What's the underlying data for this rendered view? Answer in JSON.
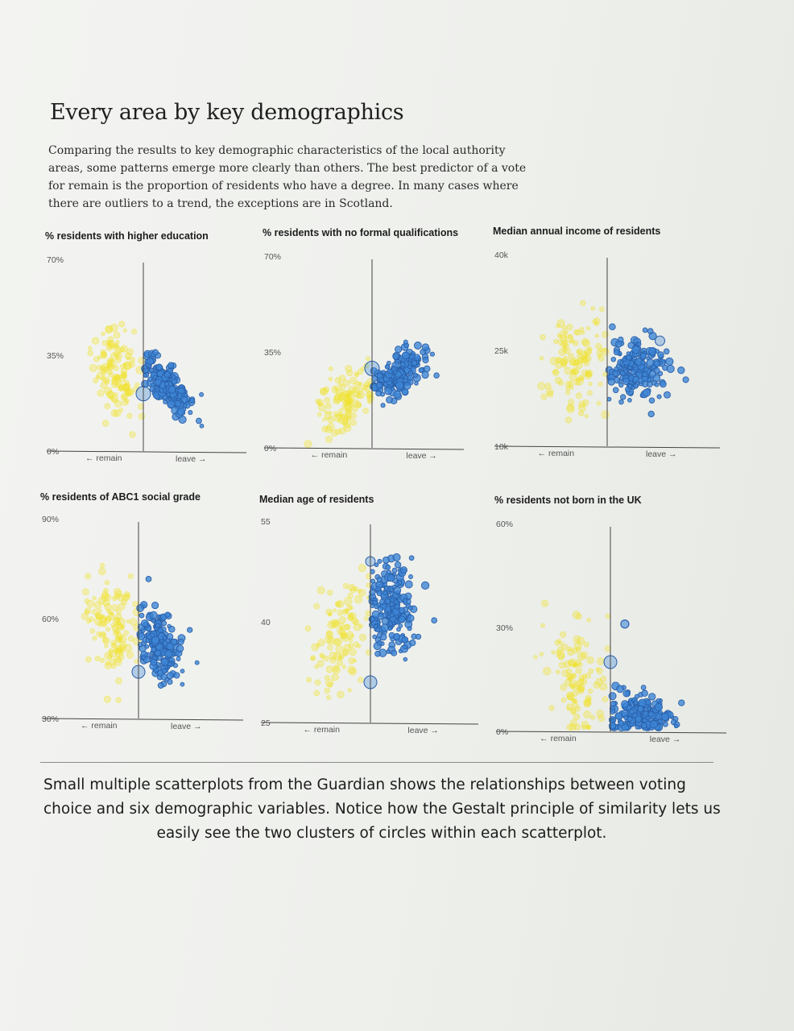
{
  "title": "Every area by key demographics",
  "intro": [
    "Comparing the results to key demographic characteristics of the local authority",
    "areas, some patterns emerge more clearly than others. The best predictor of a vote",
    "for remain is the proportion of residents who have a degree. In many cases where",
    "there are outliers to a trend, the exceptions are in Scotland."
  ],
  "colors": {
    "remain": "#f2e32a",
    "leave": "#3d86d6",
    "leave_stroke": "#2a5fa8",
    "axis": "#555555"
  },
  "labels": {
    "remain": "← remain",
    "leave": "leave →"
  },
  "chart_data": [
    {
      "type": "scatter",
      "title": "% residents with higher education",
      "ylim": [
        0,
        70
      ],
      "yticks": [
        "0%",
        "35%",
        "70%"
      ],
      "remain": {
        "center": [
          -0.35,
          30
        ],
        "spread": [
          0.28,
          8
        ],
        "slope": -20,
        "count": 120
      },
      "leave": {
        "center": [
          0.3,
          23
        ],
        "spread": [
          0.26,
          3.5
        ],
        "slope": -28,
        "count": 190
      },
      "outliers": [
        [
          0.0,
          21,
          9
        ]
      ]
    },
    {
      "type": "scatter",
      "title": "% residents with no formal qualifications",
      "ylim": [
        0,
        70
      ],
      "yticks": [
        "0%",
        "35%",
        "70%"
      ],
      "remain": {
        "center": [
          -0.3,
          17
        ],
        "spread": [
          0.28,
          5
        ],
        "slope": 14,
        "count": 110
      },
      "leave": {
        "center": [
          0.3,
          27
        ],
        "spread": [
          0.26,
          3.5
        ],
        "slope": 16,
        "count": 190
      },
      "outliers": [
        [
          0.0,
          29,
          9
        ]
      ]
    },
    {
      "type": "scatter",
      "title": "Median annual income of residents",
      "ylim": [
        10,
        40
      ],
      "yticks": [
        "10k",
        "25k",
        "40k"
      ],
      "remain": {
        "center": [
          -0.3,
          24
        ],
        "spread": [
          0.26,
          4.5
        ],
        "slope": 4,
        "count": 120
      },
      "leave": {
        "center": [
          0.28,
          22
        ],
        "spread": [
          0.26,
          2.4
        ],
        "slope": 0,
        "count": 180
      },
      "outliers": [
        [
          0.52,
          26.5,
          6
        ]
      ]
    },
    {
      "type": "scatter",
      "title": "% residents of ABC1 social grade",
      "ylim": [
        30,
        90
      ],
      "yticks": [
        "30%",
        "60%",
        "90%"
      ],
      "remain": {
        "center": [
          -0.3,
          58
        ],
        "spread": [
          0.26,
          8
        ],
        "slope": -10,
        "count": 120
      },
      "leave": {
        "center": [
          0.25,
          52
        ],
        "spread": [
          0.24,
          5
        ],
        "slope": -16,
        "count": 190
      },
      "outliers": [
        [
          0.0,
          44,
          8
        ]
      ]
    },
    {
      "type": "scatter",
      "title": "Median age of residents",
      "ylim": [
        25,
        55
      ],
      "yticks": [
        "25",
        "40",
        "55"
      ],
      "remain": {
        "center": [
          -0.3,
          38
        ],
        "spread": [
          0.28,
          4
        ],
        "slope": 8,
        "count": 110
      },
      "leave": {
        "center": [
          0.22,
          42
        ],
        "spread": [
          0.2,
          3.4
        ],
        "slope": 0,
        "count": 200
      },
      "outliers": [
        [
          0.0,
          31,
          8
        ],
        [
          0.0,
          49,
          6
        ]
      ]
    },
    {
      "type": "scatter",
      "title": "% residents not born in the UK",
      "ylim": [
        0,
        60
      ],
      "yticks": [
        "0%",
        "30%",
        "60%"
      ],
      "remain": {
        "center": [
          -0.3,
          16
        ],
        "spread": [
          0.26,
          9
        ],
        "slope": -10,
        "count": 110
      },
      "leave": {
        "center": [
          0.3,
          5
        ],
        "spread": [
          0.26,
          2.5
        ],
        "slope": -3,
        "count": 200
      },
      "outliers": [
        [
          0.0,
          20,
          8
        ],
        [
          0.14,
          31,
          5
        ],
        [
          0.14,
          31,
          5
        ]
      ]
    }
  ],
  "caption": [
    "Small multiple scatterplots from the Guardian shows the relationships between voting",
    "choice and six demographic variables. Notice how the Gestalt principle of similarity lets us",
    "easily see the two clusters of circles within each scatterplot."
  ]
}
